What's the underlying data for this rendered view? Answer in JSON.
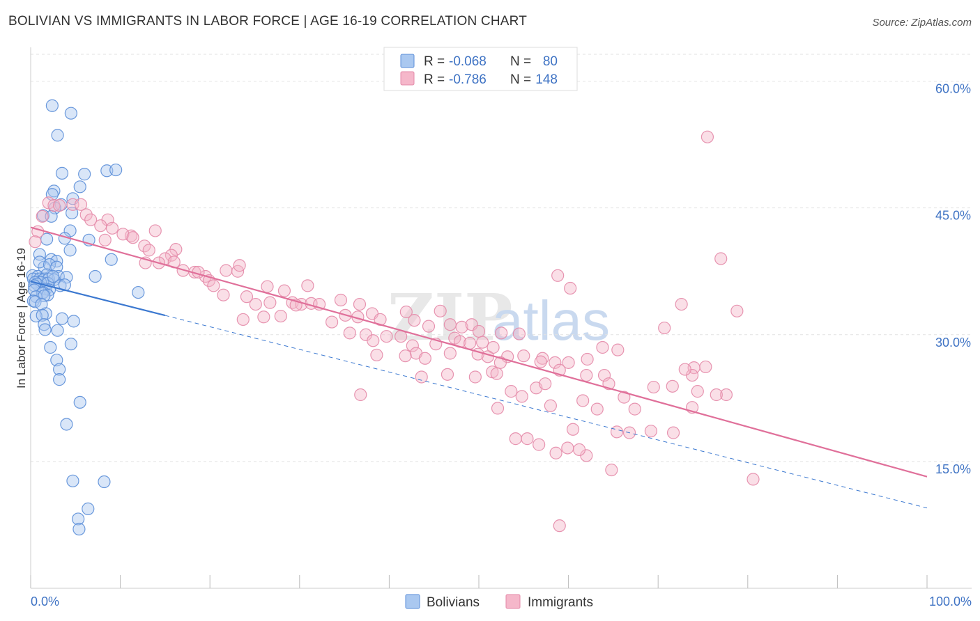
{
  "title": "BOLIVIAN VS IMMIGRANTS IN LABOR FORCE | AGE 16-19 CORRELATION CHART",
  "source": "Source: ZipAtlas.com",
  "watermark": {
    "zip": "ZIP",
    "atlas": "atlas"
  },
  "colors": {
    "blue_fill": "#aac8f0",
    "blue_stroke": "#5b8ed8",
    "blue_line": "#3b78d0",
    "pink_fill": "#f5b7ca",
    "pink_stroke": "#e48aa8",
    "pink_line": "#e0709a",
    "grid": "#e2e2e2",
    "tick_text": "#3f73c4"
  },
  "legend": {
    "rows": [
      {
        "series": "Bolivians",
        "r_label": "R =",
        "r_value": "-0.068",
        "n_label": "N =",
        "n_value": "80"
      },
      {
        "series": "Immigrants",
        "r_label": "R =",
        "r_value": "-0.786",
        "n_label": "N =",
        "n_value": "148"
      }
    ]
  },
  "chart_data": {
    "type": "scatter",
    "title": "BOLIVIAN VS IMMIGRANTS IN LABOR FORCE | AGE 16-19 CORRELATION CHART",
    "xlabel": "",
    "ylabel": "In Labor Force | Age 16-19",
    "xlim": [
      0,
      100
    ],
    "ylim": [
      0,
      64
    ],
    "x_tick_labels": [
      "0.0%",
      "100.0%"
    ],
    "y_ticks": [
      15,
      30,
      45,
      60
    ],
    "y_tick_labels": [
      "15.0%",
      "30.0%",
      "45.0%",
      "60.0%"
    ],
    "grid": true,
    "legend_position": "top-center",
    "series": [
      {
        "name": "Bolivians",
        "color": "#5b8ed8",
        "trend": {
          "x0": 0,
          "y0": 36.3,
          "x1": 100,
          "y1": 9.5,
          "solid_until_x": 15
        },
        "points": [
          [
            2.4,
            57.1
          ],
          [
            4.5,
            56.2
          ],
          [
            3.0,
            53.6
          ],
          [
            3.5,
            49.1
          ],
          [
            6.0,
            49.0
          ],
          [
            8.5,
            49.4
          ],
          [
            9.5,
            49.5
          ],
          [
            5.5,
            47.5
          ],
          [
            2.6,
            47.0
          ],
          [
            2.4,
            46.6
          ],
          [
            4.7,
            46.1
          ],
          [
            3.4,
            45.4
          ],
          [
            2.7,
            45.0
          ],
          [
            1.4,
            44.1
          ],
          [
            2.3,
            44.0
          ],
          [
            4.6,
            44.4
          ],
          [
            4.4,
            42.3
          ],
          [
            1.8,
            41.3
          ],
          [
            3.8,
            41.4
          ],
          [
            6.5,
            41.2
          ],
          [
            4.4,
            40.0
          ],
          [
            9.0,
            38.9
          ],
          [
            1.0,
            39.5
          ],
          [
            2.3,
            38.9
          ],
          [
            2.9,
            38.7
          ],
          [
            1.5,
            38.0
          ],
          [
            1.0,
            38.6
          ],
          [
            2.1,
            38.3
          ],
          [
            2.9,
            38.0
          ],
          [
            0.2,
            37.0
          ],
          [
            0.8,
            36.9
          ],
          [
            1.8,
            37.1
          ],
          [
            3.1,
            36.9
          ],
          [
            7.2,
            36.9
          ],
          [
            4.0,
            36.8
          ],
          [
            0.3,
            36.6
          ],
          [
            1.0,
            36.6
          ],
          [
            1.4,
            36.5
          ],
          [
            2.0,
            36.6
          ],
          [
            2.6,
            36.5
          ],
          [
            1.1,
            36.2
          ],
          [
            0.5,
            36.2
          ],
          [
            0.7,
            36.0
          ],
          [
            1.9,
            36.1
          ],
          [
            3.3,
            35.8
          ],
          [
            3.8,
            35.9
          ],
          [
            0.4,
            35.8
          ],
          [
            0.4,
            35.3
          ],
          [
            1.7,
            35.4
          ],
          [
            2.1,
            35.3
          ],
          [
            1.4,
            35.0
          ],
          [
            1.3,
            34.9
          ],
          [
            1.9,
            34.7
          ],
          [
            0.6,
            34.5
          ],
          [
            12.0,
            35.0
          ],
          [
            1.5,
            34.6
          ],
          [
            0.3,
            34.0
          ],
          [
            0.5,
            33.9
          ],
          [
            1.2,
            33.6
          ],
          [
            1.7,
            32.5
          ],
          [
            0.6,
            32.2
          ],
          [
            1.3,
            32.3
          ],
          [
            3.5,
            31.9
          ],
          [
            4.8,
            31.6
          ],
          [
            1.5,
            31.2
          ],
          [
            1.6,
            30.6
          ],
          [
            3.0,
            30.5
          ],
          [
            4.5,
            28.9
          ],
          [
            2.2,
            28.5
          ],
          [
            2.9,
            27.0
          ],
          [
            3.2,
            25.9
          ],
          [
            3.2,
            24.7
          ],
          [
            5.5,
            22.0
          ],
          [
            4.0,
            19.4
          ],
          [
            4.7,
            12.7
          ],
          [
            8.2,
            12.6
          ],
          [
            6.4,
            9.4
          ],
          [
            5.3,
            8.2
          ],
          [
            5.4,
            7.0
          ],
          [
            2.5,
            36.9
          ]
        ]
      },
      {
        "name": "Immigrants",
        "color": "#e48aa8",
        "trend": {
          "x0": 0,
          "y0": 42.7,
          "x1": 100,
          "y1": 13.2
        },
        "points": [
          [
            75.5,
            53.4
          ],
          [
            2.0,
            45.6
          ],
          [
            2.6,
            45.3
          ],
          [
            3.2,
            45.3
          ],
          [
            4.7,
            45.4
          ],
          [
            5.6,
            45.4
          ],
          [
            6.2,
            44.2
          ],
          [
            1.3,
            44.0
          ],
          [
            6.7,
            43.6
          ],
          [
            8.6,
            43.6
          ],
          [
            7.8,
            42.9
          ],
          [
            9.1,
            42.6
          ],
          [
            0.8,
            42.2
          ],
          [
            11.2,
            41.7
          ],
          [
            13.9,
            42.3
          ],
          [
            10.3,
            41.9
          ],
          [
            11.4,
            41.5
          ],
          [
            8.3,
            41.2
          ],
          [
            0.5,
            41.0
          ],
          [
            12.7,
            40.5
          ],
          [
            13.2,
            40.0
          ],
          [
            16.2,
            40.1
          ],
          [
            15.7,
            39.4
          ],
          [
            15.0,
            39.0
          ],
          [
            14.3,
            38.5
          ],
          [
            16.0,
            38.6
          ],
          [
            12.8,
            38.5
          ],
          [
            77.0,
            39.0
          ],
          [
            17.0,
            37.6
          ],
          [
            18.3,
            37.4
          ],
          [
            19.5,
            36.9
          ],
          [
            19.9,
            36.4
          ],
          [
            21.8,
            37.6
          ],
          [
            23.1,
            37.5
          ],
          [
            23.3,
            38.2
          ],
          [
            58.8,
            37.0
          ],
          [
            60.2,
            35.5
          ],
          [
            26.4,
            35.7
          ],
          [
            28.3,
            35.2
          ],
          [
            30.9,
            35.8
          ],
          [
            21.5,
            34.7
          ],
          [
            24.1,
            34.5
          ],
          [
            25.1,
            33.6
          ],
          [
            26.7,
            33.8
          ],
          [
            29.2,
            33.8
          ],
          [
            30.2,
            33.6
          ],
          [
            31.3,
            33.7
          ],
          [
            29.6,
            33.5
          ],
          [
            32.2,
            33.6
          ],
          [
            34.6,
            34.1
          ],
          [
            36.7,
            33.6
          ],
          [
            38.1,
            32.5
          ],
          [
            36.5,
            32.1
          ],
          [
            35.1,
            32.3
          ],
          [
            33.6,
            31.5
          ],
          [
            27.9,
            32.2
          ],
          [
            23.7,
            31.8
          ],
          [
            72.6,
            33.6
          ],
          [
            78.8,
            32.8
          ],
          [
            45.7,
            32.8
          ],
          [
            41.9,
            32.7
          ],
          [
            39.0,
            31.8
          ],
          [
            37.4,
            30.0
          ],
          [
            42.8,
            31.7
          ],
          [
            44.4,
            31.0
          ],
          [
            48.1,
            30.9
          ],
          [
            46.8,
            31.2
          ],
          [
            49.2,
            31.2
          ],
          [
            47.3,
            29.6
          ],
          [
            50.0,
            30.4
          ],
          [
            52.5,
            30.2
          ],
          [
            54.5,
            30.1
          ],
          [
            38.2,
            29.3
          ],
          [
            39.7,
            29.8
          ],
          [
            41.3,
            29.8
          ],
          [
            42.6,
            28.7
          ],
          [
            43.0,
            27.8
          ],
          [
            45.2,
            28.9
          ],
          [
            47.9,
            29.2
          ],
          [
            50.4,
            29.1
          ],
          [
            51.6,
            28.5
          ],
          [
            53.2,
            27.4
          ],
          [
            55.0,
            27.5
          ],
          [
            57.1,
            27.2
          ],
          [
            58.5,
            26.7
          ],
          [
            60.0,
            26.7
          ],
          [
            62.1,
            27.1
          ],
          [
            63.8,
            28.5
          ],
          [
            65.5,
            28.2
          ],
          [
            70.7,
            30.8
          ],
          [
            74.0,
            26.1
          ],
          [
            35.6,
            30.2
          ],
          [
            38.6,
            27.6
          ],
          [
            41.8,
            27.5
          ],
          [
            44.0,
            27.2
          ],
          [
            46.8,
            27.8
          ],
          [
            49.9,
            27.7
          ],
          [
            51.0,
            27.4
          ],
          [
            52.4,
            26.7
          ],
          [
            56.9,
            26.8
          ],
          [
            59.0,
            25.8
          ],
          [
            62.0,
            25.2
          ],
          [
            64.0,
            25.2
          ],
          [
            73.8,
            25.2
          ],
          [
            77.6,
            22.9
          ],
          [
            43.6,
            25.0
          ],
          [
            46.5,
            25.3
          ],
          [
            49.6,
            25.0
          ],
          [
            51.5,
            25.6
          ],
          [
            52.0,
            25.4
          ],
          [
            53.6,
            23.3
          ],
          [
            54.8,
            22.7
          ],
          [
            56.4,
            23.7
          ],
          [
            57.4,
            24.2
          ],
          [
            61.6,
            22.2
          ],
          [
            64.5,
            24.2
          ],
          [
            66.2,
            22.6
          ],
          [
            69.5,
            23.8
          ],
          [
            71.6,
            23.9
          ],
          [
            74.4,
            23.3
          ],
          [
            73.8,
            21.4
          ],
          [
            52.1,
            21.3
          ],
          [
            58.0,
            21.6
          ],
          [
            63.2,
            21.2
          ],
          [
            60.5,
            18.8
          ],
          [
            65.4,
            18.5
          ],
          [
            66.8,
            18.4
          ],
          [
            69.2,
            18.6
          ],
          [
            71.7,
            18.4
          ],
          [
            54.1,
            17.7
          ],
          [
            55.4,
            17.7
          ],
          [
            56.7,
            17.0
          ],
          [
            59.9,
            16.6
          ],
          [
            58.6,
            16.0
          ],
          [
            62.0,
            15.7
          ],
          [
            64.8,
            14.0
          ],
          [
            80.6,
            12.9
          ],
          [
            59.0,
            7.4
          ],
          [
            36.8,
            22.9
          ],
          [
            61.2,
            16.4
          ],
          [
            76.5,
            22.9
          ],
          [
            73.0,
            25.9
          ],
          [
            75.3,
            26.2
          ],
          [
            67.4,
            21.2
          ],
          [
            20.4,
            35.8
          ],
          [
            26.0,
            32.1
          ],
          [
            49.0,
            29.0
          ],
          [
            18.7,
            37.4
          ]
        ]
      }
    ]
  },
  "bottom_legend": [
    {
      "series": "Bolivians",
      "label": "Bolivians"
    },
    {
      "series": "Immigrants",
      "label": "Immigrants"
    }
  ]
}
